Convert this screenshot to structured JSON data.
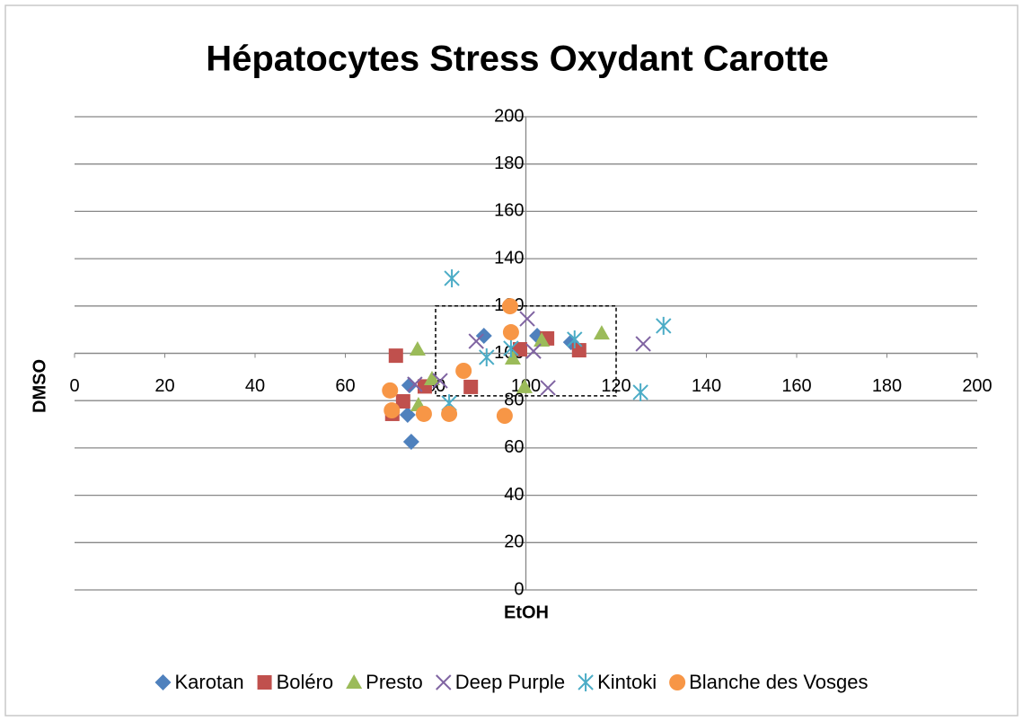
{
  "chart_data": {
    "type": "scatter",
    "title": "Hépatocytes Stress Oxydant Carotte",
    "x_label": "EtOH",
    "y_label": "DMSO",
    "xlim": [
      0,
      200
    ],
    "ylim": [
      0,
      200
    ],
    "xticks": [
      0,
      20,
      40,
      60,
      80,
      100,
      120,
      140,
      160,
      180,
      200
    ],
    "yticks": [
      0,
      20,
      40,
      60,
      80,
      100,
      120,
      140,
      160,
      180,
      200
    ],
    "axis_cross": [
      100,
      100
    ],
    "grid": true,
    "legend": "bottom",
    "box": {
      "x": [
        80,
        120
      ],
      "y": [
        82,
        120
      ]
    },
    "series": [
      {
        "name": "Karotan",
        "color": "#4f81bd",
        "marker": "diamond",
        "x": [
          74.2,
          73.8,
          74.6,
          90.7,
          102.5,
          110
        ],
        "y": [
          86.5,
          74,
          62.6,
          107.4,
          107.4,
          104.7
        ]
      },
      {
        "name": "Boléro",
        "color": "#c0504d",
        "marker": "square",
        "x": [
          71.2,
          70.4,
          72.8,
          77.6,
          87.8,
          98.7,
          104.7,
          111.8
        ],
        "y": [
          99,
          74.4,
          79.7,
          86,
          85.8,
          101.7,
          106.3,
          101.3
        ]
      },
      {
        "name": "Presto",
        "color": "#9bbb59",
        "marker": "triangle",
        "x": [
          76,
          76.2,
          79.2,
          97.1,
          99.7,
          103.5,
          116.8
        ],
        "y": [
          101.7,
          78.2,
          89.2,
          97.9,
          85.8,
          105.5,
          108.5
        ]
      },
      {
        "name": "Deep Purple",
        "color": "#8064a2",
        "marker": "x",
        "x": [
          75.4,
          81,
          89,
          100.3,
          101.7,
          104.9,
          126
        ],
        "y": [
          86.9,
          88.4,
          105.1,
          114.6,
          100.9,
          85.4,
          104
        ]
      },
      {
        "name": "Kintoki",
        "color": "#4bacc6",
        "marker": "star",
        "x": [
          83.6,
          83,
          91.3,
          96.7,
          110.8,
          125.4,
          130.5
        ],
        "y": [
          131.7,
          78.9,
          98.3,
          102.1,
          105.9,
          83.5,
          111.6
        ]
      },
      {
        "name": "Blanche des Vosges",
        "color": "#f79646",
        "marker": "circle",
        "x": [
          69.9,
          70.3,
          77.4,
          83,
          86.2,
          95.3,
          96.5,
          96.7
        ],
        "y": [
          84.3,
          75.9,
          74.4,
          74.4,
          92.6,
          73.6,
          119.9,
          108.9
        ]
      }
    ]
  }
}
